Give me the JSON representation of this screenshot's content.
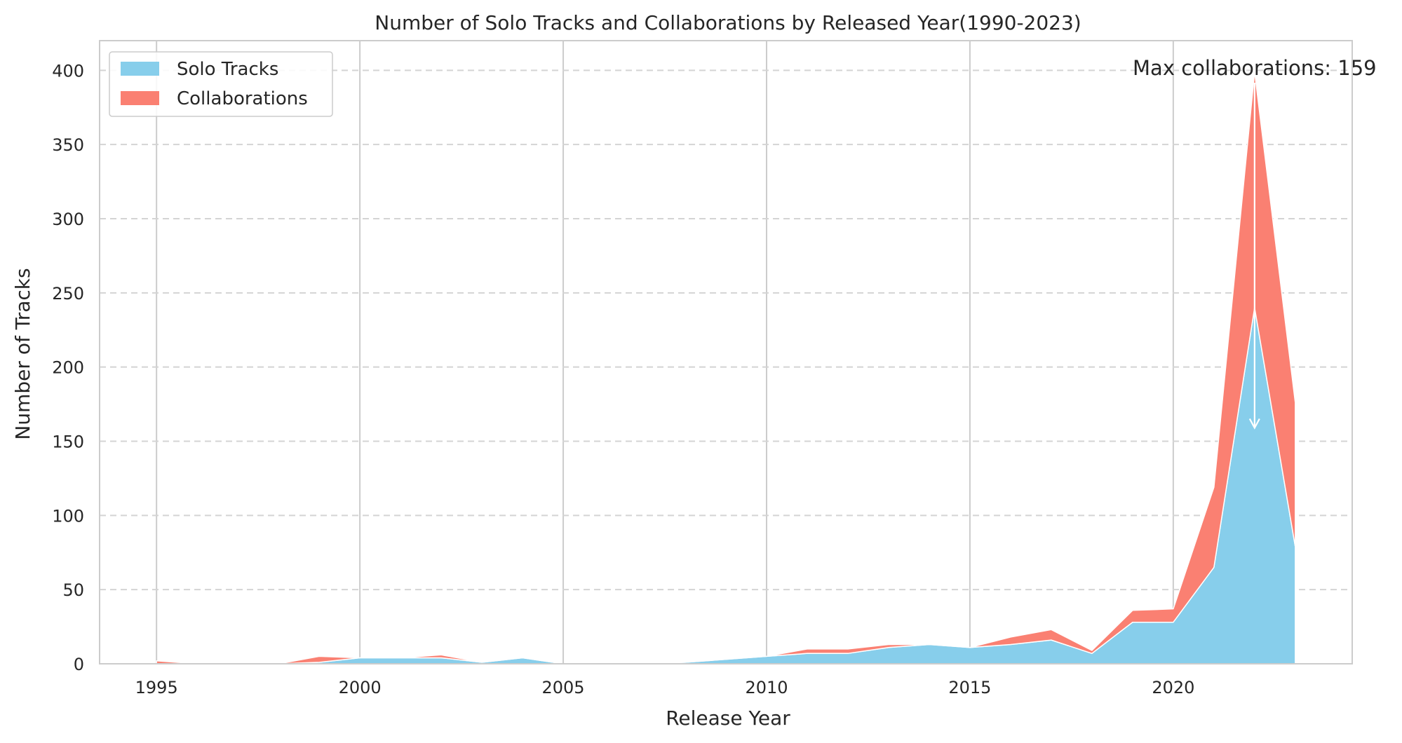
{
  "chart_data": {
    "type": "area",
    "stacked": true,
    "title": "Number of Solo Tracks and Collaborations by Released Year(1990-2023)",
    "xlabel": "Release Year",
    "ylabel": "Number of Tracks",
    "xlim": [
      1993.6,
      2024.4
    ],
    "ylim": [
      0,
      420
    ],
    "xticks": [
      1995,
      2000,
      2005,
      2010,
      2015,
      2020
    ],
    "yticks": [
      0,
      50,
      100,
      150,
      200,
      250,
      300,
      350,
      400
    ],
    "grid": {
      "x": "solid",
      "y": "dashed"
    },
    "legend_position": "top-left",
    "x": [
      1995,
      1996,
      1997,
      1998,
      1999,
      2000,
      2001,
      2002,
      2003,
      2004,
      2005,
      2006,
      2007,
      2008,
      2009,
      2010,
      2011,
      2012,
      2013,
      2014,
      2015,
      2016,
      2017,
      2018,
      2019,
      2020,
      2021,
      2022,
      2023
    ],
    "series": [
      {
        "name": "Solo Tracks",
        "color": "#87ceeb",
        "values": [
          0,
          0,
          0,
          0,
          1,
          4,
          4,
          4,
          1,
          4,
          0,
          0,
          0,
          1,
          3,
          5,
          7,
          7,
          11,
          13,
          11,
          13,
          16,
          7,
          28,
          28,
          65,
          240,
          79
        ]
      },
      {
        "name": "Collaborations",
        "color": "#fa8072",
        "values": [
          2,
          0,
          0,
          0,
          4,
          0,
          0,
          2,
          0,
          0,
          0,
          0,
          0,
          0,
          0,
          0,
          3,
          3,
          2,
          0,
          0,
          5,
          7,
          2,
          8,
          9,
          54,
          159,
          97
        ]
      }
    ],
    "annotation": {
      "text": "Max collaborations: 159",
      "x": 2022,
      "y": 159
    }
  }
}
